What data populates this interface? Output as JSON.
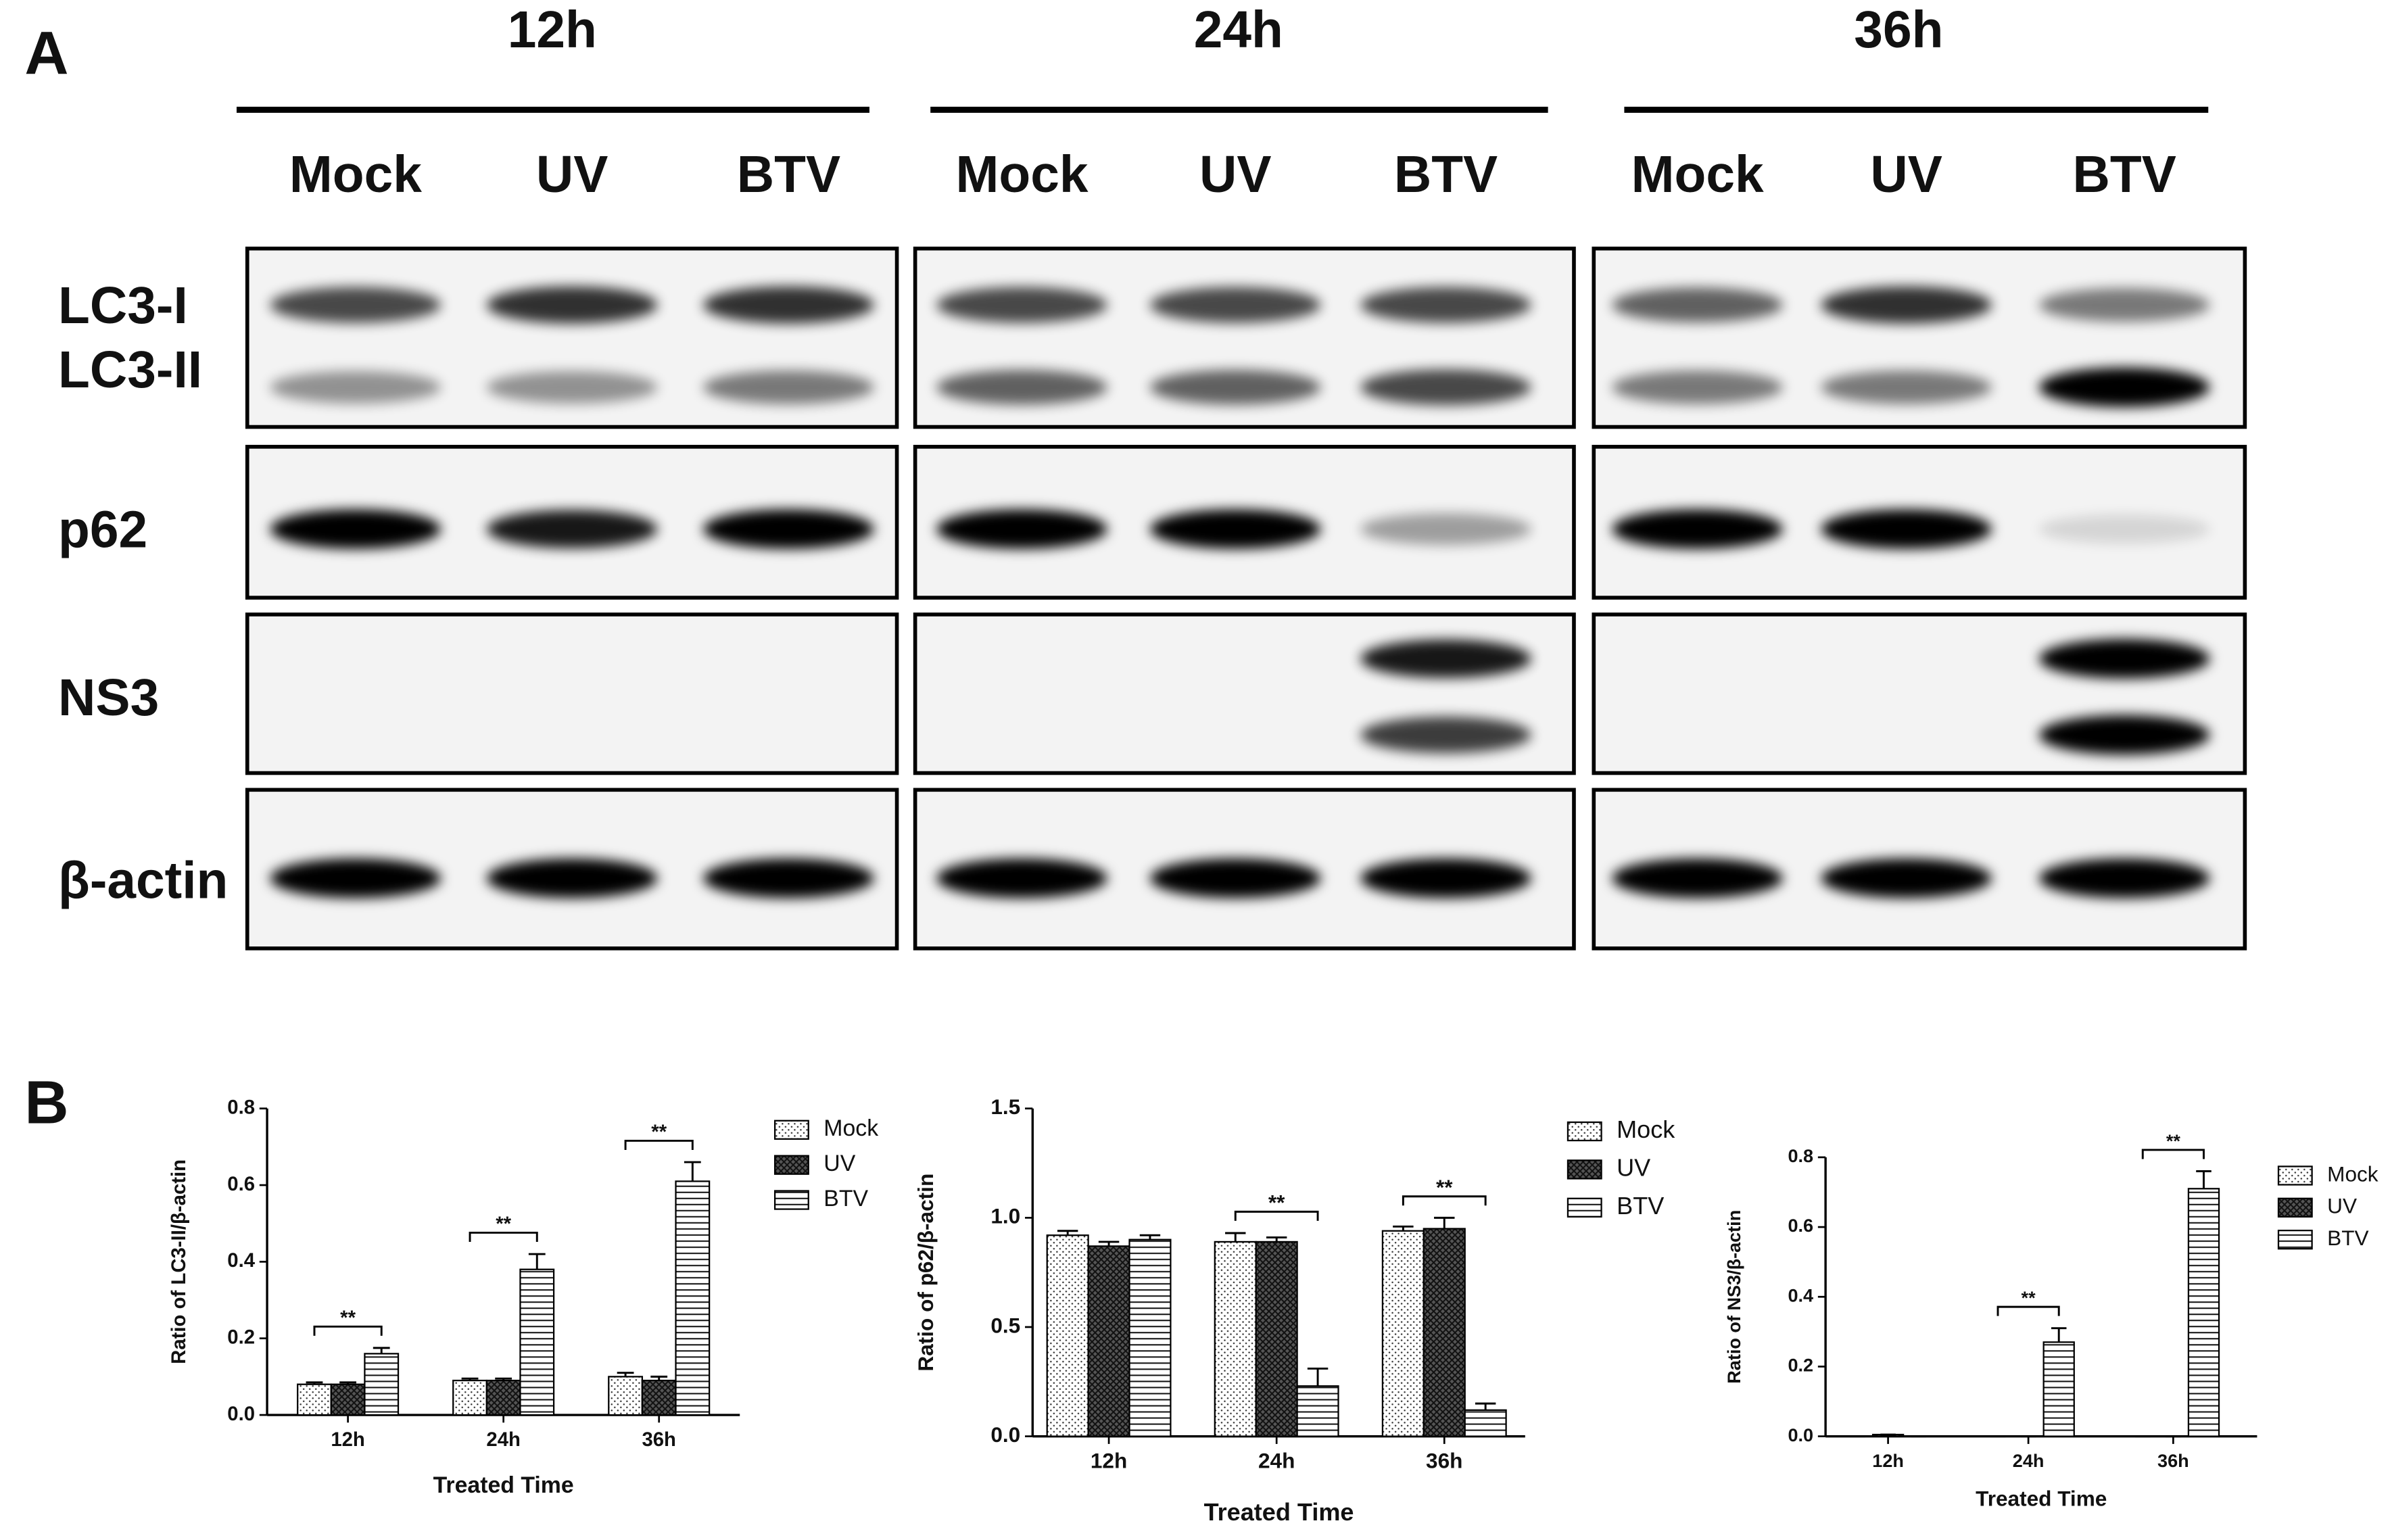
{
  "panel_a": {
    "label": "A",
    "proteins": [
      "LC3-I",
      "LC3-II",
      "p62",
      "NS3",
      "β-actin"
    ],
    "groups": [
      {
        "time": "12h",
        "lanes": [
          "Mock",
          "UV",
          "BTV"
        ]
      },
      {
        "time": "24h",
        "lanes": [
          "Mock",
          "UV",
          "BTV"
        ]
      },
      {
        "time": "36h",
        "lanes": [
          "Mock",
          "UV",
          "BTV"
        ]
      }
    ]
  },
  "panel_b": {
    "label": "B"
  },
  "chart_data": [
    {
      "type": "bar",
      "ylabel": "Ratio of LC3-II/β-actin",
      "xlabel": "Treated Time",
      "categories": [
        "12h",
        "24h",
        "36h"
      ],
      "series": [
        {
          "name": "Mock",
          "color": "#000000",
          "pattern": "dots",
          "values": [
            0.08,
            0.09,
            0.1
          ],
          "errors": [
            0.005,
            0.005,
            0.01
          ]
        },
        {
          "name": "UV",
          "color": "#000000",
          "pattern": "crosshatch",
          "values": [
            0.08,
            0.09,
            0.09
          ],
          "errors": [
            0.005,
            0.005,
            0.01
          ]
        },
        {
          "name": "BTV",
          "color": "#000000",
          "pattern": "hlines",
          "values": [
            0.16,
            0.38,
            0.61
          ],
          "errors": [
            0.015,
            0.04,
            0.05
          ]
        }
      ],
      "ylim": [
        0,
        0.8
      ],
      "yticks": [
        {
          "value": 0,
          "label": "0.0"
        },
        0.2,
        0.4,
        0.6,
        0.8
      ],
      "significance": [
        "**",
        "**",
        "**"
      ],
      "legend": "right"
    },
    {
      "type": "bar",
      "ylabel": "Ratio of p62/β-actin",
      "xlabel": "Treated Time",
      "categories": [
        "12h",
        "24h",
        "36h"
      ],
      "series": [
        {
          "name": "Mock",
          "color": "#000000",
          "pattern": "dots",
          "values": [
            0.92,
            0.89,
            0.94
          ],
          "errors": [
            0.02,
            0.04,
            0.02
          ]
        },
        {
          "name": "UV",
          "color": "#000000",
          "pattern": "crosshatch",
          "values": [
            0.87,
            0.89,
            0.95
          ],
          "errors": [
            0.02,
            0.02,
            0.05
          ]
        },
        {
          "name": "BTV",
          "color": "#000000",
          "pattern": "hlines",
          "values": [
            0.9,
            0.23,
            0.12
          ],
          "errors": [
            0.02,
            0.08,
            0.03
          ]
        }
      ],
      "ylim": [
        0,
        1.5
      ],
      "yticks": [
        {
          "value": 0,
          "label": "0.0"
        },
        0.5,
        {
          "value": 1,
          "label": "1.0"
        },
        1.5
      ],
      "significance": [
        null,
        "**",
        "**"
      ],
      "legend": "right"
    },
    {
      "type": "bar",
      "ylabel": "Ratio of NS3/β-actin",
      "xlabel": "Treated Time",
      "categories": [
        "12h",
        "24h",
        "36h"
      ],
      "series": [
        {
          "name": "Mock",
          "color": "#000000",
          "pattern": "dots",
          "values": [
            0,
            0,
            0
          ],
          "errors": [
            0,
            0,
            0
          ]
        },
        {
          "name": "UV",
          "color": "#000000",
          "pattern": "crosshatch",
          "values": [
            0.005,
            0,
            0
          ],
          "errors": [
            0,
            0,
            0
          ]
        },
        {
          "name": "BTV",
          "color": "#000000",
          "pattern": "hlines",
          "values": [
            0,
            0.27,
            0.71
          ],
          "errors": [
            0,
            0.04,
            0.05
          ]
        }
      ],
      "ylim": [
        0,
        0.8
      ],
      "yticks": [
        {
          "value": 0,
          "label": "0.0"
        },
        0.2,
        0.4,
        0.6,
        0.8
      ],
      "significance": [
        null,
        "**",
        "**"
      ],
      "legend": "right"
    }
  ]
}
